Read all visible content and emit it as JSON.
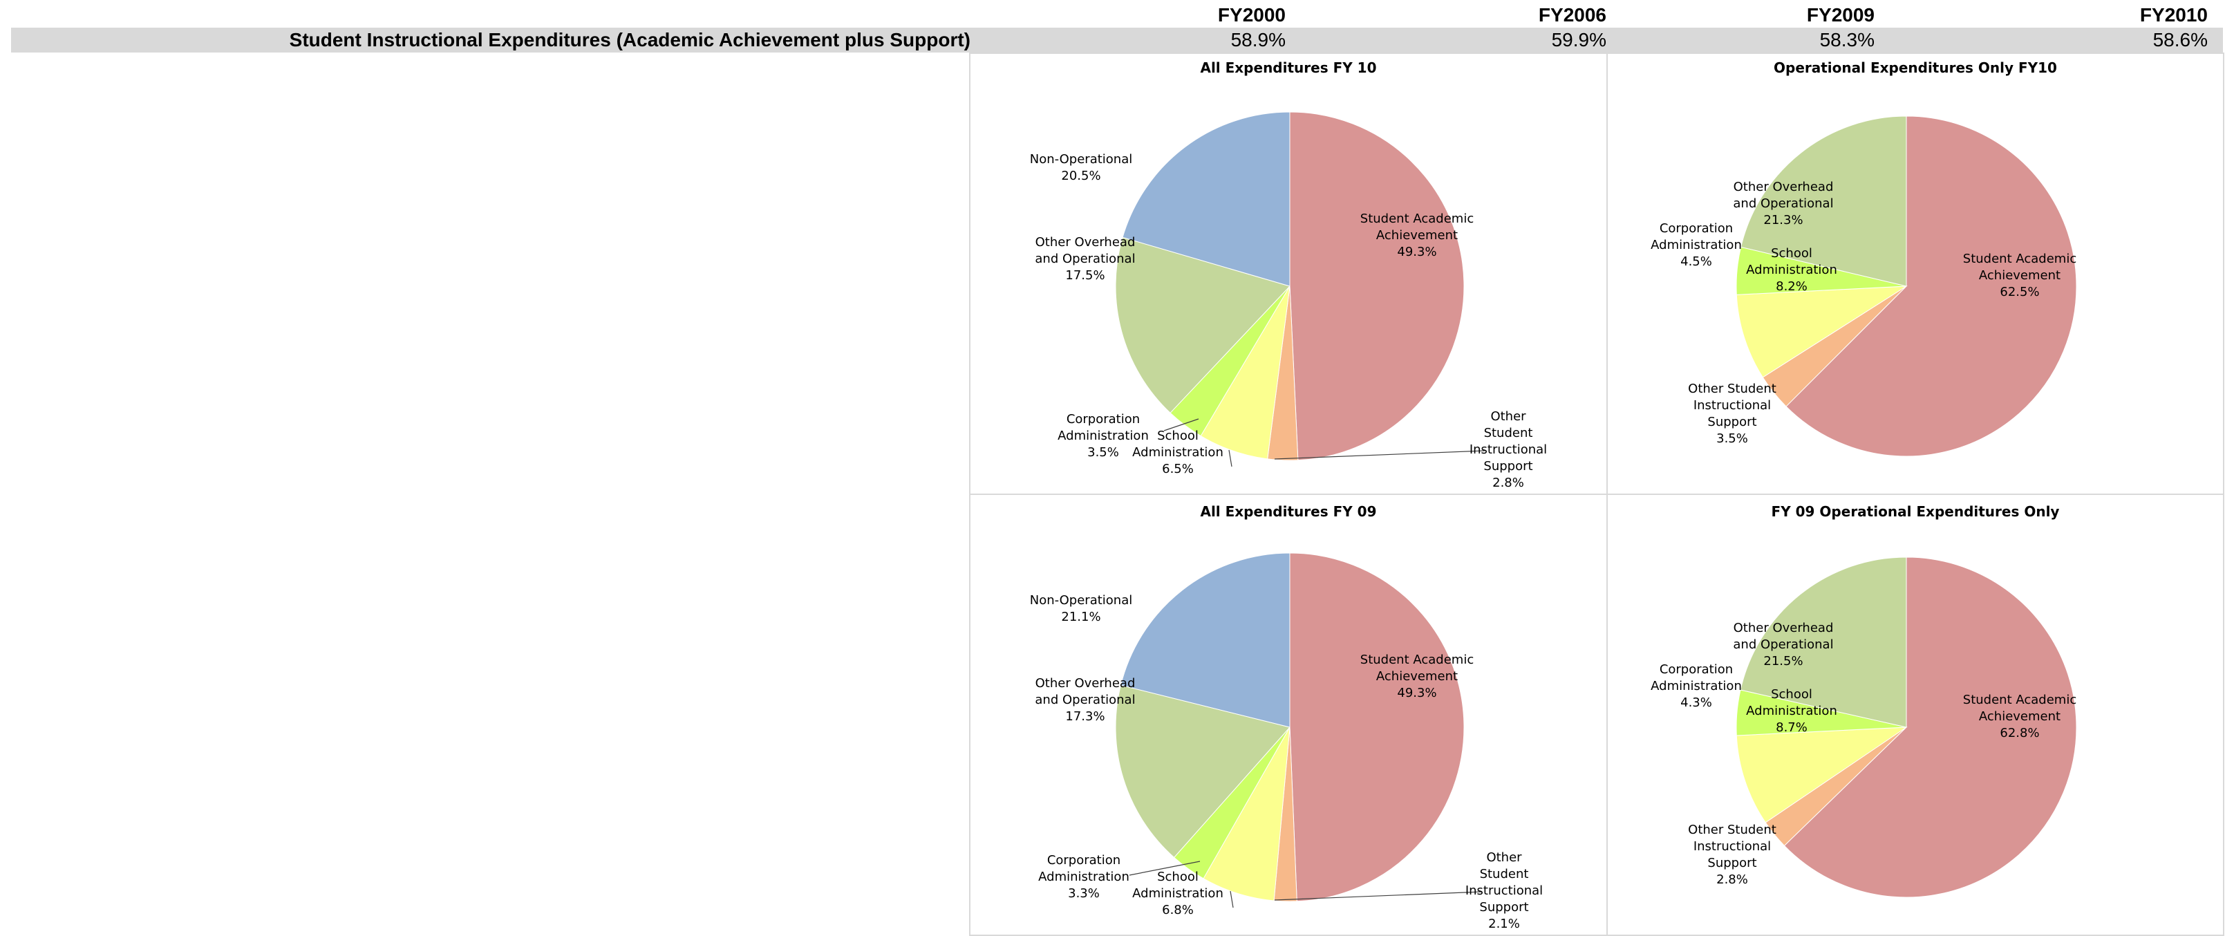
{
  "table": {
    "headers": [
      "FY2000",
      "FY2006",
      "FY2009",
      "FY2010"
    ],
    "row_label": "Student Instructional Expenditures (Academic Achievement plus Support)",
    "row_values": [
      "58.9%",
      "59.9%",
      "58.3%",
      "58.6%"
    ]
  },
  "colors": {
    "student_academic": "#d99594",
    "other_student_support": "#f7b98a",
    "school_admin": "#fbff8f",
    "corporation_admin": "#ccff66",
    "other_overhead": "#c4d79b",
    "non_operational": "#95b3d7",
    "band": "#d9d9d9"
  },
  "chart_data": [
    {
      "type": "pie",
      "title": "All Expenditures FY 10",
      "slices": [
        {
          "name": "Student Academic Achievement",
          "value": 49.3,
          "label": [
            "Student Academic",
            "Achievement",
            "49.3%"
          ],
          "color_key": "student_academic"
        },
        {
          "name": "Other Student Instructional Support",
          "value": 2.8,
          "label": [
            "Other",
            "Student",
            "Instructional",
            "Support",
            "2.8%"
          ],
          "color_key": "other_student_support"
        },
        {
          "name": "School Administration",
          "value": 6.5,
          "label": [
            "School",
            "Administration",
            "6.5%"
          ],
          "color_key": "school_admin"
        },
        {
          "name": "Corporation Administration",
          "value": 3.5,
          "label": [
            "Corporation",
            "Administration",
            "3.5%"
          ],
          "color_key": "corporation_admin"
        },
        {
          "name": "Other Overhead and Operational",
          "value": 17.5,
          "label": [
            "Other Overhead",
            "and Operational",
            "17.5%"
          ],
          "color_key": "other_overhead"
        },
        {
          "name": "Non-Operational",
          "value": 20.5,
          "label": [
            "Non-Operational",
            "20.5%"
          ],
          "color_key": "non_operational"
        }
      ]
    },
    {
      "type": "pie",
      "title": "Operational Expenditures Only FY10",
      "slices": [
        {
          "name": "Student Academic Achievement",
          "value": 62.5,
          "label": [
            "Student Academic",
            "Achievement",
            "62.5%"
          ],
          "color_key": "student_academic"
        },
        {
          "name": "Other Student Instructional Support",
          "value": 3.5,
          "label": [
            "Other Student",
            "Instructional",
            "Support",
            "3.5%"
          ],
          "color_key": "other_student_support"
        },
        {
          "name": "School Administration",
          "value": 8.2,
          "label": [
            "School",
            "Administration",
            "8.2%"
          ],
          "color_key": "school_admin"
        },
        {
          "name": "Corporation Administration",
          "value": 4.5,
          "label": [
            "Corporation",
            "Administration",
            "4.5%"
          ],
          "color_key": "corporation_admin"
        },
        {
          "name": "Other Overhead and Operational",
          "value": 21.3,
          "label": [
            "Other Overhead",
            "and Operational",
            "21.3%"
          ],
          "color_key": "other_overhead"
        }
      ]
    },
    {
      "type": "pie",
      "title": "All Expenditures FY 09",
      "slices": [
        {
          "name": "Student Academic Achievement",
          "value": 49.3,
          "label": [
            "Student Academic",
            "Achievement",
            "49.3%"
          ],
          "color_key": "student_academic"
        },
        {
          "name": "Other Student Instructional Support",
          "value": 2.1,
          "label": [
            "Other",
            "Student",
            "Instructional",
            "Support",
            "2.1%"
          ],
          "color_key": "other_student_support"
        },
        {
          "name": "School Administration",
          "value": 6.8,
          "label": [
            "School",
            "Administration",
            "6.8%"
          ],
          "color_key": "school_admin"
        },
        {
          "name": "Corporation Administration",
          "value": 3.3,
          "label": [
            "Corporation",
            "Administration",
            "3.3%"
          ],
          "color_key": "corporation_admin"
        },
        {
          "name": "Other Overhead and Operational",
          "value": 17.3,
          "label": [
            "Other Overhead",
            "and Operational",
            "17.3%"
          ],
          "color_key": "other_overhead"
        },
        {
          "name": "Non-Operational",
          "value": 21.1,
          "label": [
            "Non-Operational",
            "21.1%"
          ],
          "color_key": "non_operational"
        }
      ]
    },
    {
      "type": "pie",
      "title": "FY 09 Operational Expenditures Only",
      "slices": [
        {
          "name": "Student Academic Achievement",
          "value": 62.8,
          "label": [
            "Student Academic",
            "Achievement",
            "62.8%"
          ],
          "color_key": "student_academic"
        },
        {
          "name": "Other Student Instructional Support",
          "value": 2.8,
          "label": [
            "Other Student",
            "Instructional",
            "Support",
            "2.8%"
          ],
          "color_key": "other_student_support"
        },
        {
          "name": "School Administration",
          "value": 8.7,
          "label": [
            "School",
            "Administration",
            "8.7%"
          ],
          "color_key": "school_admin"
        },
        {
          "name": "Corporation Administration",
          "value": 4.3,
          "label": [
            "Corporation",
            "Administration",
            "4.3%"
          ],
          "color_key": "corporation_admin"
        },
        {
          "name": "Other Overhead and Operational",
          "value": 21.5,
          "label": [
            "Other Overhead",
            "and Operational",
            "21.5%"
          ],
          "color_key": "other_overhead"
        }
      ]
    }
  ]
}
